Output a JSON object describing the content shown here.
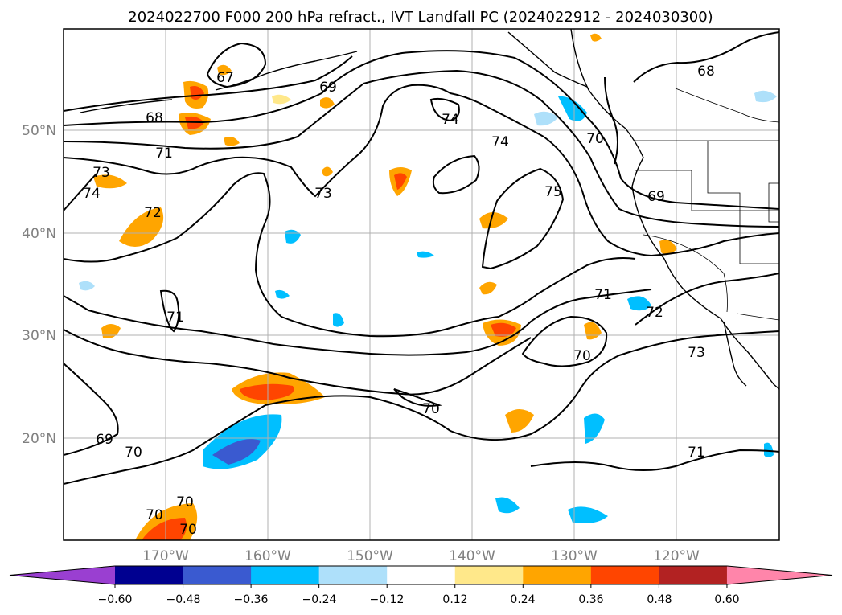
{
  "title": "2024022700 F000 200 hPa refract., IVT Landfall PC (2024022912 - 2024030300)",
  "map": {
    "lon_labels": [
      "170°W",
      "160°W",
      "150°W",
      "140°W",
      "130°W",
      "120°W"
    ],
    "lat_labels": [
      "50°N",
      "40°N",
      "30°N",
      "20°N"
    ],
    "contour_labels": [
      {
        "text": "67"
      },
      {
        "text": "68"
      },
      {
        "text": "69"
      },
      {
        "text": "71"
      },
      {
        "text": "73"
      },
      {
        "text": "74"
      },
      {
        "text": "72"
      },
      {
        "text": "73"
      },
      {
        "text": "74"
      },
      {
        "text": "74"
      },
      {
        "text": "70"
      },
      {
        "text": "68"
      },
      {
        "text": "69"
      },
      {
        "text": "75"
      },
      {
        "text": "71"
      },
      {
        "text": "71"
      },
      {
        "text": "72"
      },
      {
        "text": "70"
      },
      {
        "text": "73"
      },
      {
        "text": "70"
      },
      {
        "text": "69"
      },
      {
        "text": "70"
      },
      {
        "text": "71"
      },
      {
        "text": "70"
      },
      {
        "text": "70"
      },
      {
        "text": "70"
      }
    ]
  },
  "colorbar": {
    "tick_labels": [
      "−0.60",
      "−0.48",
      "−0.36",
      "−0.24",
      "−0.12",
      "0.12",
      "0.24",
      "0.36",
      "0.48",
      "0.60"
    ],
    "colors": [
      "#9a3fd1",
      "#000090",
      "#3a5ad0",
      "#00bfff",
      "#aee0fa",
      "#ffffff",
      "#ffe88a",
      "#ffa500",
      "#ff4500",
      "#b22222",
      "#ff85aa"
    ]
  }
}
